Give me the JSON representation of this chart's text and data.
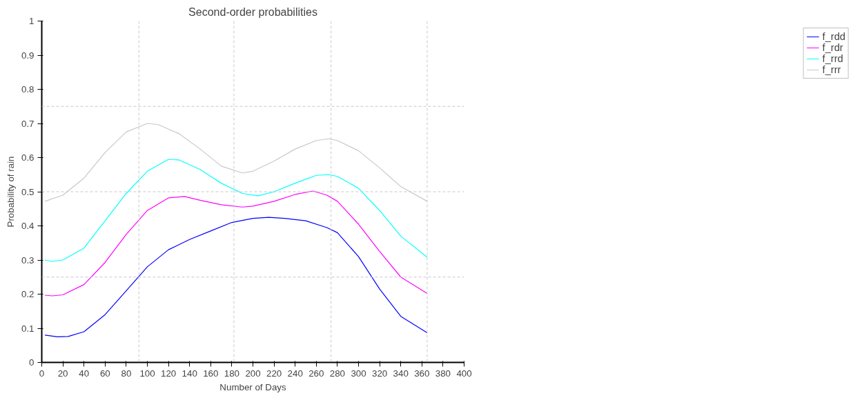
{
  "chart_data": {
    "type": "line",
    "title": "Second-order probabilities",
    "xlabel": "Number of Days",
    "ylabel": "Probability of rain",
    "xlim": [
      0,
      400
    ],
    "ylim": [
      0,
      1
    ],
    "xticks": [
      0,
      20,
      40,
      60,
      80,
      100,
      120,
      140,
      160,
      180,
      200,
      220,
      240,
      260,
      280,
      300,
      320,
      340,
      360,
      380,
      400
    ],
    "yticks": [
      0,
      0.1,
      0.2,
      0.3,
      0.4,
      0.5,
      0.6,
      0.7,
      0.8,
      0.9,
      1
    ],
    "grid": false,
    "legend": "top right",
    "marker": "none",
    "line_style": "solid",
    "ref_lines": [
      {
        "axis": "x",
        "value": 92,
        "color": "#c8c8c8",
        "line_style": "dashed"
      },
      {
        "axis": "x",
        "value": 182,
        "color": "#c8c8c8",
        "line_style": "dashed"
      },
      {
        "axis": "x",
        "value": 274,
        "color": "#c8c8c8",
        "line_style": "dashed"
      },
      {
        "axis": "x",
        "value": 365,
        "color": "#c8c8c8",
        "line_style": "dashed"
      },
      {
        "axis": "y",
        "value": 0.25,
        "color": "#c8c8c8",
        "line_style": "dashed"
      },
      {
        "axis": "y",
        "value": 0.5,
        "color": "#c8c8c8",
        "line_style": "dashed"
      },
      {
        "axis": "y",
        "value": 0.75,
        "color": "#c8c8c8",
        "line_style": "dashed"
      }
    ],
    "series": [
      {
        "name": "f_rdd",
        "color": "#0000ff",
        "x": [
          3,
          15,
          25,
          40,
          60,
          80,
          100,
          120,
          140,
          160,
          180,
          200,
          215,
          230,
          250,
          270,
          280,
          300,
          320,
          340,
          365
        ],
        "values": [
          0.08,
          0.075,
          0.076,
          0.09,
          0.14,
          0.21,
          0.28,
          0.33,
          0.36,
          0.385,
          0.41,
          0.422,
          0.425,
          0.422,
          0.415,
          0.395,
          0.38,
          0.31,
          0.215,
          0.135,
          0.087
        ]
      },
      {
        "name": "f_rdr",
        "color": "#ff00ff",
        "x": [
          3,
          10,
          20,
          40,
          60,
          80,
          100,
          120,
          135,
          150,
          170,
          190,
          200,
          220,
          240,
          257,
          270,
          280,
          300,
          320,
          340,
          365
        ],
        "values": [
          0.197,
          0.195,
          0.198,
          0.228,
          0.293,
          0.375,
          0.445,
          0.482,
          0.486,
          0.475,
          0.462,
          0.455,
          0.458,
          0.472,
          0.492,
          0.502,
          0.49,
          0.472,
          0.405,
          0.325,
          0.25,
          0.202
        ]
      },
      {
        "name": "f_rrd",
        "color": "#00ffff",
        "x": [
          3,
          10,
          20,
          40,
          60,
          80,
          100,
          120,
          130,
          150,
          170,
          190,
          205,
          220,
          240,
          260,
          272,
          280,
          300,
          320,
          340,
          365
        ],
        "values": [
          0.3,
          0.296,
          0.3,
          0.335,
          0.415,
          0.495,
          0.56,
          0.595,
          0.593,
          0.565,
          0.525,
          0.495,
          0.488,
          0.5,
          0.525,
          0.548,
          0.55,
          0.545,
          0.51,
          0.445,
          0.37,
          0.308
        ]
      },
      {
        "name": "f_rrr",
        "color": "#c8c8c8",
        "x": [
          3,
          20,
          40,
          60,
          80,
          100,
          110,
          130,
          150,
          170,
          190,
          200,
          220,
          240,
          260,
          272,
          280,
          300,
          320,
          340,
          365
        ],
        "values": [
          0.472,
          0.49,
          0.54,
          0.615,
          0.675,
          0.7,
          0.697,
          0.67,
          0.625,
          0.575,
          0.555,
          0.56,
          0.59,
          0.625,
          0.65,
          0.655,
          0.65,
          0.62,
          0.57,
          0.515,
          0.472
        ]
      }
    ]
  }
}
